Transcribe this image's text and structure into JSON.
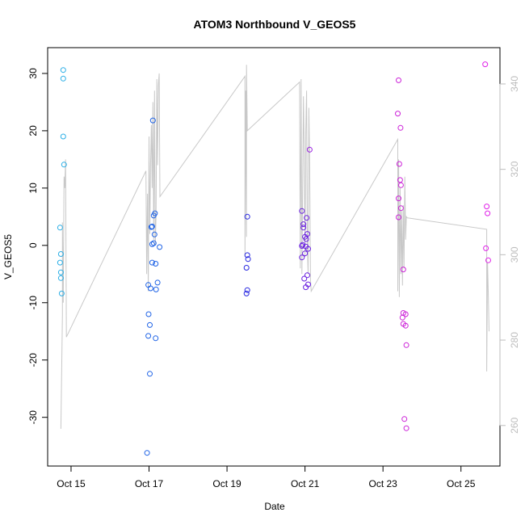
{
  "chart_data": {
    "type": "scatter",
    "title": "ATOM3 Northbound V_GEOS5",
    "xlabel": "Date",
    "ylabel": "V_GEOS5",
    "x_ticks": [
      {
        "label": "Oct 15",
        "day": 15
      },
      {
        "label": "Oct 17",
        "day": 17
      },
      {
        "label": "Oct 19",
        "day": 19
      },
      {
        "label": "Oct 21",
        "day": 21
      },
      {
        "label": "Oct 23",
        "day": 23
      },
      {
        "label": "Oct 25",
        "day": 25
      }
    ],
    "xlim": [
      14.4,
      26.0
    ],
    "ylim": [
      -38.5,
      34.5
    ],
    "y_ticks": [
      -30,
      -20,
      -10,
      0,
      10,
      20,
      30
    ],
    "y2_ticks": [
      260,
      280,
      300,
      320,
      340
    ],
    "y2lim": [
      250.5,
      348.5
    ],
    "colors": {
      "line": "#c8c8c8",
      "right_axis": "#bdbdbd",
      "axis": "#000000"
    },
    "points": [
      {
        "day": 14.8,
        "y": 30.6,
        "color": "#29aee6"
      },
      {
        "day": 14.8,
        "y": 29.1,
        "color": "#29aee6"
      },
      {
        "day": 14.8,
        "y": 19.0,
        "color": "#29aee6"
      },
      {
        "day": 14.82,
        "y": 14.1,
        "color": "#29aee6"
      },
      {
        "day": 14.72,
        "y": 3.1,
        "color": "#29aee6"
      },
      {
        "day": 14.74,
        "y": -1.5,
        "color": "#29aee6"
      },
      {
        "day": 14.72,
        "y": -3.0,
        "color": "#29aee6"
      },
      {
        "day": 14.74,
        "y": -4.7,
        "color": "#29aee6"
      },
      {
        "day": 14.74,
        "y": -5.7,
        "color": "#29aee6"
      },
      {
        "day": 14.76,
        "y": -8.4,
        "color": "#29aee6"
      },
      {
        "day": 17.1,
        "y": 21.8,
        "color": "#1f63e6"
      },
      {
        "day": 17.12,
        "y": 5.2,
        "color": "#1f63e6"
      },
      {
        "day": 17.15,
        "y": 5.6,
        "color": "#1f63e6"
      },
      {
        "day": 17.08,
        "y": 3.3,
        "color": "#1f63e6"
      },
      {
        "day": 17.06,
        "y": 3.2,
        "color": "#1f63e6"
      },
      {
        "day": 17.14,
        "y": 1.9,
        "color": "#1f63e6"
      },
      {
        "day": 17.12,
        "y": 0.4,
        "color": "#1f63e6"
      },
      {
        "day": 17.08,
        "y": 0.2,
        "color": "#1f63e6"
      },
      {
        "day": 17.27,
        "y": -0.3,
        "color": "#1f63e6"
      },
      {
        "day": 17.08,
        "y": -3.0,
        "color": "#1f63e6"
      },
      {
        "day": 17.17,
        "y": -3.2,
        "color": "#1f63e6"
      },
      {
        "day": 17.22,
        "y": -6.5,
        "color": "#1f63e6"
      },
      {
        "day": 16.98,
        "y": -6.9,
        "color": "#1f63e6"
      },
      {
        "day": 17.04,
        "y": -7.5,
        "color": "#1f63e6"
      },
      {
        "day": 17.18,
        "y": -7.7,
        "color": "#1f63e6"
      },
      {
        "day": 16.99,
        "y": -12.0,
        "color": "#1f63e6"
      },
      {
        "day": 17.02,
        "y": -13.9,
        "color": "#1f63e6"
      },
      {
        "day": 16.98,
        "y": -15.8,
        "color": "#1f63e6"
      },
      {
        "day": 17.17,
        "y": -16.2,
        "color": "#1f63e6"
      },
      {
        "day": 17.02,
        "y": -22.4,
        "color": "#1f63e6"
      },
      {
        "day": 16.95,
        "y": -36.2,
        "color": "#1f63e6"
      },
      {
        "day": 19.52,
        "y": 5.0,
        "color": "#2626e0"
      },
      {
        "day": 19.52,
        "y": -1.7,
        "color": "#2626e0"
      },
      {
        "day": 19.54,
        "y": -2.4,
        "color": "#2626e0"
      },
      {
        "day": 19.5,
        "y": -3.9,
        "color": "#2626e0"
      },
      {
        "day": 19.52,
        "y": -7.8,
        "color": "#2626e0"
      },
      {
        "day": 19.5,
        "y": -8.4,
        "color": "#2626e0"
      },
      {
        "day": 20.92,
        "y": 6.0,
        "color": "#6a1fe0"
      },
      {
        "day": 20.96,
        "y": 3.7,
        "color": "#6a1fe0"
      },
      {
        "day": 20.96,
        "y": 3.1,
        "color": "#6a1fe0"
      },
      {
        "day": 21.04,
        "y": 4.8,
        "color": "#6a1fe0"
      },
      {
        "day": 21.06,
        "y": 2.0,
        "color": "#6a1fe0"
      },
      {
        "day": 21.0,
        "y": 1.5,
        "color": "#6a1fe0"
      },
      {
        "day": 21.03,
        "y": 1.1,
        "color": "#6a1fe0"
      },
      {
        "day": 20.94,
        "y": 0.1,
        "color": "#6a1fe0"
      },
      {
        "day": 20.92,
        "y": -0.1,
        "color": "#6a1fe0"
      },
      {
        "day": 21.02,
        "y": -0.2,
        "color": "#6a1fe0"
      },
      {
        "day": 21.08,
        "y": -0.6,
        "color": "#6a1fe0"
      },
      {
        "day": 21.0,
        "y": -1.4,
        "color": "#6a1fe0"
      },
      {
        "day": 20.92,
        "y": -2.1,
        "color": "#6a1fe0"
      },
      {
        "day": 21.06,
        "y": -5.2,
        "color": "#6a1fe0"
      },
      {
        "day": 20.98,
        "y": -5.8,
        "color": "#6a1fe0"
      },
      {
        "day": 21.08,
        "y": -6.8,
        "color": "#6a1fe0"
      },
      {
        "day": 21.02,
        "y": -7.3,
        "color": "#6a1fe0"
      },
      {
        "day": 21.12,
        "y": 16.7,
        "color": "#9a1fe0"
      },
      {
        "day": 23.4,
        "y": 28.8,
        "color": "#cc22d8"
      },
      {
        "day": 23.38,
        "y": 23.0,
        "color": "#cc22d8"
      },
      {
        "day": 23.45,
        "y": 20.5,
        "color": "#cc22d8"
      },
      {
        "day": 23.42,
        "y": 14.2,
        "color": "#cc22d8"
      },
      {
        "day": 23.44,
        "y": 11.4,
        "color": "#cc22d8"
      },
      {
        "day": 23.46,
        "y": 10.5,
        "color": "#cc22d8"
      },
      {
        "day": 23.4,
        "y": 8.2,
        "color": "#cc22d8"
      },
      {
        "day": 23.46,
        "y": 6.5,
        "color": "#cc22d8"
      },
      {
        "day": 23.4,
        "y": 4.9,
        "color": "#cc22d8"
      },
      {
        "day": 23.52,
        "y": -4.2,
        "color": "#cc22d8"
      },
      {
        "day": 23.52,
        "y": -11.8,
        "color": "#cc22d8"
      },
      {
        "day": 23.58,
        "y": -12.0,
        "color": "#cc22d8"
      },
      {
        "day": 23.5,
        "y": -12.6,
        "color": "#cc22d8"
      },
      {
        "day": 23.52,
        "y": -13.7,
        "color": "#cc22d8"
      },
      {
        "day": 23.58,
        "y": -14.0,
        "color": "#cc22d8"
      },
      {
        "day": 23.6,
        "y": -17.4,
        "color": "#cc22d8"
      },
      {
        "day": 23.55,
        "y": -30.3,
        "color": "#cc22d8"
      },
      {
        "day": 23.6,
        "y": -31.9,
        "color": "#cc22d8"
      },
      {
        "day": 25.62,
        "y": 31.6,
        "color": "#e020e8"
      },
      {
        "day": 25.66,
        "y": 6.8,
        "color": "#e020e8"
      },
      {
        "day": 25.68,
        "y": 5.6,
        "color": "#e020e8"
      },
      {
        "day": 25.64,
        "y": -0.5,
        "color": "#e020e8"
      },
      {
        "day": 25.7,
        "y": -2.6,
        "color": "#e020e8"
      }
    ],
    "line": [
      [
        14.74,
        -32.0
      ],
      [
        14.78,
        -12.0
      ],
      [
        14.78,
        4.0
      ],
      [
        14.8,
        -10.0
      ],
      [
        14.82,
        12.0
      ],
      [
        14.84,
        10.0
      ],
      [
        14.86,
        15.0
      ],
      [
        14.88,
        -16.0
      ],
      [
        16.92,
        13.0
      ],
      [
        16.94,
        -5.0
      ],
      [
        16.96,
        9.0
      ],
      [
        16.98,
        -8.0
      ],
      [
        17.0,
        19.0
      ],
      [
        17.02,
        2.0
      ],
      [
        17.04,
        14.0
      ],
      [
        17.06,
        21.0
      ],
      [
        17.08,
        10.0
      ],
      [
        17.1,
        25.0
      ],
      [
        17.12,
        1.0
      ],
      [
        17.14,
        27.0
      ],
      [
        17.16,
        0.0
      ],
      [
        17.18,
        5.0
      ],
      [
        17.2,
        29.0
      ],
      [
        17.22,
        14.0
      ],
      [
        17.24,
        28.0
      ],
      [
        17.26,
        30.0
      ],
      [
        17.28,
        8.5
      ],
      [
        19.46,
        29.5
      ],
      [
        19.46,
        -2.0
      ],
      [
        19.48,
        27.0
      ],
      [
        19.5,
        1.5
      ],
      [
        19.5,
        31.5
      ],
      [
        19.52,
        20.0
      ],
      [
        20.86,
        28.5
      ],
      [
        20.88,
        -4.0
      ],
      [
        20.9,
        29.0
      ],
      [
        20.92,
        -5.0
      ],
      [
        20.96,
        26.0
      ],
      [
        20.98,
        16.0
      ],
      [
        21.0,
        -2.0
      ],
      [
        21.02,
        20.0
      ],
      [
        21.04,
        27.0
      ],
      [
        21.06,
        0.0
      ],
      [
        21.08,
        -5.0
      ],
      [
        21.1,
        24.0
      ],
      [
        21.12,
        14.0
      ],
      [
        21.14,
        -6.0
      ],
      [
        21.16,
        -8.0
      ],
      [
        23.38,
        18.5
      ],
      [
        23.38,
        -8.0
      ],
      [
        23.4,
        15.0
      ],
      [
        23.42,
        -9.0
      ],
      [
        23.44,
        10.0
      ],
      [
        23.46,
        -5.0
      ],
      [
        23.48,
        6.0
      ],
      [
        23.5,
        -7.0
      ],
      [
        23.52,
        7.0
      ],
      [
        23.54,
        -4.0
      ],
      [
        23.56,
        12.0
      ],
      [
        23.58,
        1.0
      ],
      [
        23.6,
        5.0
      ],
      [
        23.62,
        4.8
      ],
      [
        25.66,
        2.8
      ],
      [
        25.66,
        -22.0
      ],
      [
        25.68,
        -3.0
      ],
      [
        25.7,
        -8.0
      ],
      [
        25.72,
        -15.0
      ]
    ]
  }
}
